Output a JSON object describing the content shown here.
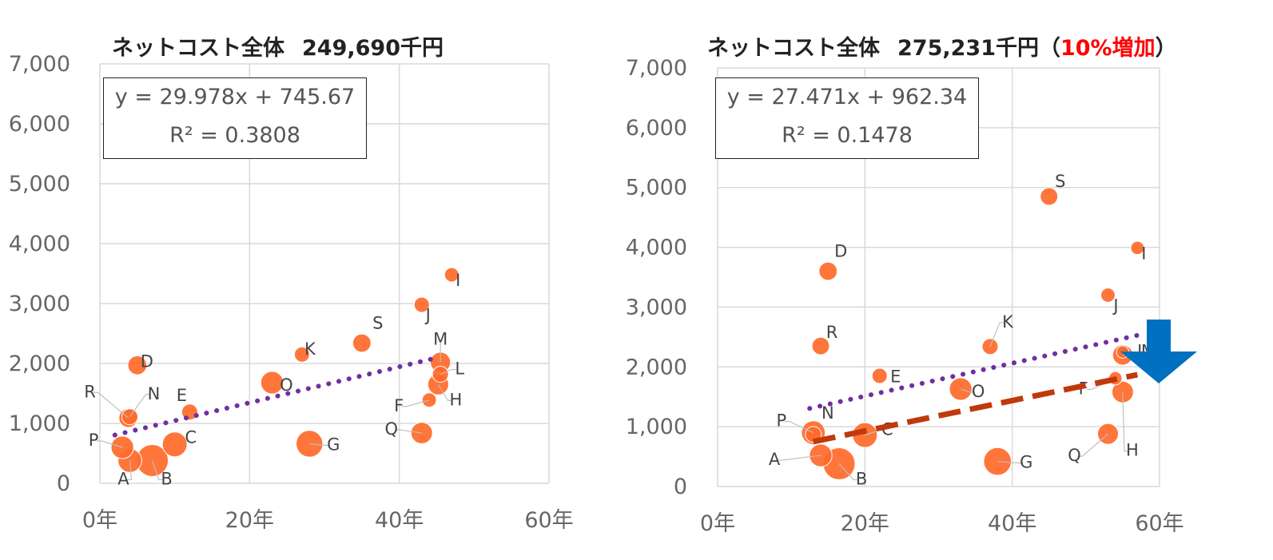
{
  "charts": [
    {
      "title": {
        "label": "ネットコスト全体",
        "value": "249,690千円",
        "note_open": "",
        "note": "",
        "note_close": ""
      },
      "equation": "y = 29.978x + 745.67",
      "r2": "R² = 0.3808"
    },
    {
      "title": {
        "label": "ネットコスト全体",
        "value": "275,231千円",
        "note_open": "（",
        "note": "10%増加",
        "note_close": "）"
      },
      "equation": "y = 27.471x + 962.34",
      "r2": "R² = 0.1478"
    }
  ],
  "colors": {
    "bubble": "#ff6a2b",
    "trend": "#7030a0",
    "fit": "#c0390b",
    "arrow": "#0070c0",
    "grid": "#d9d9d9"
  },
  "chart_data": [
    {
      "type": "scatter",
      "title": "ネットコスト全体 249,690千円",
      "xlim": [
        0,
        60
      ],
      "ylim": [
        0,
        7000
      ],
      "x_ticks": [
        "0年",
        "20年",
        "40年",
        "60年"
      ],
      "y_ticks": [
        "0",
        "1,000",
        "2,000",
        "3,000",
        "4,000",
        "5,000",
        "6,000",
        "7,000"
      ],
      "grid": true,
      "bubbles": [
        {
          "label": "A",
          "x": 4,
          "y": 380,
          "size": 2.2
        },
        {
          "label": "B",
          "x": 7,
          "y": 380,
          "size": 4.0
        },
        {
          "label": "C",
          "x": 10,
          "y": 650,
          "size": 2.4
        },
        {
          "label": "D",
          "x": 5,
          "y": 1970,
          "size": 1.4
        },
        {
          "label": "E",
          "x": 12,
          "y": 1190,
          "size": 1.0
        },
        {
          "label": "F",
          "x": 44,
          "y": 1390,
          "size": 0.8
        },
        {
          "label": "G",
          "x": 28,
          "y": 660,
          "size": 2.8
        },
        {
          "label": "H",
          "x": 45.2,
          "y": 1650,
          "size": 1.7
        },
        {
          "label": "I",
          "x": 47,
          "y": 3480,
          "size": 0.8
        },
        {
          "label": "J",
          "x": 43,
          "y": 2980,
          "size": 0.9
        },
        {
          "label": "K",
          "x": 27,
          "y": 2150,
          "size": 0.9
        },
        {
          "label": "L",
          "x": 45.5,
          "y": 1820,
          "size": 1.0
        },
        {
          "label": "M",
          "x": 45.5,
          "y": 2020,
          "size": 1.6
        },
        {
          "label": "N",
          "x": 4,
          "y": 1110,
          "size": 1.0
        },
        {
          "label": "O",
          "x": 23,
          "y": 1680,
          "size": 2.0
        },
        {
          "label": "P",
          "x": 3,
          "y": 600,
          "size": 2.0
        },
        {
          "label": "Q",
          "x": 43,
          "y": 840,
          "size": 1.8
        },
        {
          "label": "R",
          "x": 3.8,
          "y": 1090,
          "size": 1.4
        },
        {
          "label": "S",
          "x": 35,
          "y": 2340,
          "size": 1.3
        }
      ],
      "trendline": {
        "slope": 29.978,
        "intercept": 745.67,
        "x_from": 2,
        "x_to": 45.5
      }
    },
    {
      "type": "scatter",
      "title": "ネットコスト全体 275,231千円（10%増加）",
      "xlim": [
        0,
        60
      ],
      "ylim": [
        0,
        7000
      ],
      "x_ticks": [
        "0年",
        "20年",
        "40年",
        "60年"
      ],
      "y_ticks": [
        "0",
        "1,000",
        "2,000",
        "3,000",
        "4,000",
        "5,000",
        "6,000",
        "7,000"
      ],
      "grid": true,
      "bubbles": [
        {
          "label": "A",
          "x": 14,
          "y": 520,
          "size": 2.0
        },
        {
          "label": "B",
          "x": 16.5,
          "y": 380,
          "size": 4.0
        },
        {
          "label": "C",
          "x": 20,
          "y": 860,
          "size": 2.4
        },
        {
          "label": "D",
          "x": 15,
          "y": 3600,
          "size": 1.3
        },
        {
          "label": "E",
          "x": 22,
          "y": 1850,
          "size": 0.9
        },
        {
          "label": "F",
          "x": 54,
          "y": 1810,
          "size": 0.7
        },
        {
          "label": "G",
          "x": 38,
          "y": 420,
          "size": 3.0
        },
        {
          "label": "H",
          "x": 55,
          "y": 1580,
          "size": 1.8
        },
        {
          "label": "I",
          "x": 57,
          "y": 3990,
          "size": 0.7
        },
        {
          "label": "J",
          "x": 53,
          "y": 3200,
          "size": 0.8
        },
        {
          "label": "K",
          "x": 37,
          "y": 2340,
          "size": 1.0
        },
        {
          "label": "L",
          "x": 55,
          "y": 2250,
          "size": 0.6
        },
        {
          "label": "M",
          "x": 55,
          "y": 2200,
          "size": 1.6
        },
        {
          "label": "N",
          "x": 13,
          "y": 870,
          "size": 1.0
        },
        {
          "label": "O",
          "x": 33,
          "y": 1630,
          "size": 2.0
        },
        {
          "label": "P",
          "x": 13,
          "y": 900,
          "size": 2.2
        },
        {
          "label": "Q",
          "x": 53,
          "y": 880,
          "size": 1.7
        },
        {
          "label": "R",
          "x": 14,
          "y": 2350,
          "size": 1.2
        },
        {
          "label": "S",
          "x": 45,
          "y": 4850,
          "size": 1.2
        }
      ],
      "trendline": {
        "slope": 27.471,
        "intercept": 962.34,
        "x_from": 12.5,
        "x_to": 57
      },
      "adjusted_line": {
        "x_from": 13,
        "y_from": 750,
        "x_to": 57,
        "y_to": 1870
      }
    }
  ]
}
